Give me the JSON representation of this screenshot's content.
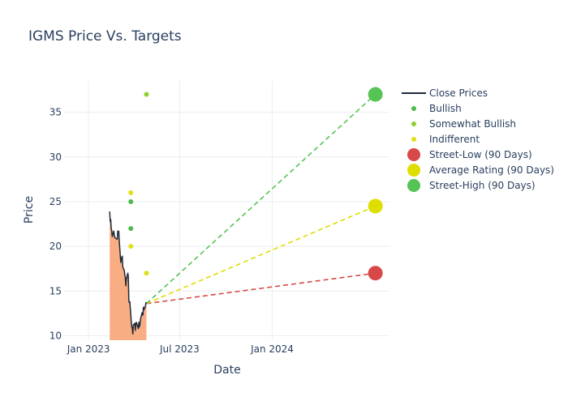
{
  "chart_data": {
    "type": "line",
    "title": "IGMS Price Vs. Targets",
    "xlabel": "Date",
    "ylabel": "Price",
    "xlim": [
      "2022-11-15",
      "2024-08-21"
    ],
    "ylim": [
      9.5,
      38.5
    ],
    "grid": true,
    "legend_position": "right",
    "x_ticks": [
      {
        "date": "2023-01-01",
        "label": "Jan 2023"
      },
      {
        "date": "2023-07-01",
        "label": "Jul 2023"
      },
      {
        "date": "2024-01-01",
        "label": "Jan 2024"
      }
    ],
    "y_ticks": [
      10,
      15,
      20,
      25,
      30,
      35
    ],
    "colors": {
      "close": "#1f2a3a",
      "fill": "#f8ae82",
      "bullish": "#4bbb4b",
      "somewhat_bullish": "#8dd12e",
      "indifferent": "#e0e01a",
      "street_low": "#d94848",
      "average": "#dede00",
      "street_high": "#55c455"
    },
    "series": [
      {
        "name": "Close Prices",
        "kind": "line",
        "points": [
          [
            "2023-02-12",
            23.9
          ],
          [
            "2023-02-13",
            22.8
          ],
          [
            "2023-02-14",
            23.0
          ],
          [
            "2023-02-15",
            22.0
          ],
          [
            "2023-02-16",
            21.8
          ],
          [
            "2023-02-17",
            21.1
          ],
          [
            "2023-02-20",
            21.7
          ],
          [
            "2023-02-21",
            21.3
          ],
          [
            "2023-02-22",
            21.0
          ],
          [
            "2023-02-24",
            20.9
          ],
          [
            "2023-02-27",
            20.8
          ],
          [
            "2023-02-28",
            21.7
          ],
          [
            "2023-03-01",
            21.6
          ],
          [
            "2023-03-02",
            21.7
          ],
          [
            "2023-03-03",
            20.6
          ],
          [
            "2023-03-06",
            18.2
          ],
          [
            "2023-03-07",
            18.5
          ],
          [
            "2023-03-08",
            18.8
          ],
          [
            "2023-03-09",
            18.9
          ],
          [
            "2023-03-10",
            17.7
          ],
          [
            "2023-03-13",
            17.3
          ],
          [
            "2023-03-14",
            16.8
          ],
          [
            "2023-03-15",
            16.5
          ],
          [
            "2023-03-16",
            15.6
          ],
          [
            "2023-03-17",
            16.3
          ],
          [
            "2023-03-20",
            17.0
          ],
          [
            "2023-03-21",
            16.6
          ],
          [
            "2023-03-22",
            14.0
          ],
          [
            "2023-03-23",
            13.7
          ],
          [
            "2023-03-24",
            13.8
          ],
          [
            "2023-03-27",
            11.5
          ],
          [
            "2023-03-28",
            11.0
          ],
          [
            "2023-03-29",
            10.8
          ],
          [
            "2023-03-30",
            10.2
          ],
          [
            "2023-03-31",
            11.2
          ],
          [
            "2023-04-03",
            11.4
          ],
          [
            "2023-04-04",
            10.6
          ],
          [
            "2023-04-05",
            11.3
          ],
          [
            "2023-04-06",
            11.5
          ],
          [
            "2023-04-10",
            10.8
          ],
          [
            "2023-04-11",
            11.5
          ],
          [
            "2023-04-12",
            11.0
          ],
          [
            "2023-04-13",
            11.2
          ],
          [
            "2023-04-14",
            11.8
          ],
          [
            "2023-04-17",
            12.5
          ],
          [
            "2023-04-18",
            12.6
          ],
          [
            "2023-04-19",
            12.3
          ],
          [
            "2023-04-20",
            13.2
          ],
          [
            "2023-04-21",
            12.9
          ],
          [
            "2023-04-24",
            13.3
          ],
          [
            "2023-04-25",
            13.7
          ],
          [
            "2023-04-26",
            13.6
          ]
        ]
      },
      {
        "name": "Bullish",
        "kind": "markers",
        "points": [
          [
            "2023-03-26",
            25.0
          ],
          [
            "2023-03-26",
            22.0
          ]
        ]
      },
      {
        "name": "Somewhat Bullish",
        "kind": "markers",
        "points": [
          [
            "2023-04-26",
            37.0
          ]
        ]
      },
      {
        "name": "Indifferent",
        "kind": "markers",
        "points": [
          [
            "2023-03-26",
            26.0
          ],
          [
            "2023-03-26",
            20.0
          ],
          [
            "2023-04-26",
            17.0
          ]
        ]
      },
      {
        "name": "Street-Low (90 Days)",
        "kind": "target",
        "points": [
          [
            "2023-04-26",
            13.6
          ],
          [
            "2024-07-24",
            17.0
          ]
        ]
      },
      {
        "name": "Average Rating (90 Days)",
        "kind": "target",
        "points": [
          [
            "2023-04-26",
            13.6
          ],
          [
            "2024-07-24",
            24.5
          ]
        ]
      },
      {
        "name": "Street-High (90 Days)",
        "kind": "target",
        "points": [
          [
            "2023-04-26",
            13.6
          ],
          [
            "2024-07-24",
            37.0
          ]
        ]
      }
    ]
  }
}
